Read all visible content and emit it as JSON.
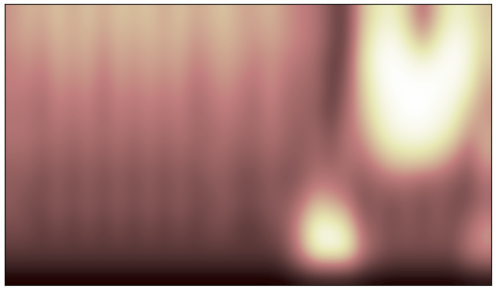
{
  "chart_data": {
    "type": "heatmap",
    "tick_labels": false,
    "color": "pink",
    "cells": [
      [
        0.45,
        0.55,
        0.5,
        0.6,
        0.5,
        0.6,
        0.5,
        0.6,
        0.55,
        0.6,
        0.5,
        0.6,
        0.5,
        0.55,
        0.6,
        0.5,
        0.5,
        0.55,
        0.45,
        0.4,
        0.35,
        0.2,
        0.15,
        0.55,
        0.75,
        0.8,
        0.6,
        0.3,
        0.6,
        0.8,
        0.75,
        0.6
      ],
      [
        0.45,
        0.5,
        0.45,
        0.55,
        0.5,
        0.55,
        0.45,
        0.55,
        0.5,
        0.55,
        0.5,
        0.55,
        0.45,
        0.5,
        0.55,
        0.5,
        0.45,
        0.5,
        0.45,
        0.4,
        0.35,
        0.2,
        0.15,
        0.6,
        0.85,
        0.9,
        0.75,
        0.5,
        0.75,
        0.9,
        0.85,
        0.65
      ],
      [
        0.4,
        0.45,
        0.4,
        0.5,
        0.45,
        0.5,
        0.4,
        0.5,
        0.45,
        0.5,
        0.45,
        0.5,
        0.4,
        0.45,
        0.5,
        0.45,
        0.4,
        0.45,
        0.4,
        0.35,
        0.3,
        0.15,
        0.2,
        0.65,
        0.9,
        0.95,
        0.9,
        0.85,
        0.9,
        0.95,
        0.85,
        0.6
      ],
      [
        0.4,
        0.4,
        0.35,
        0.45,
        0.4,
        0.45,
        0.35,
        0.45,
        0.4,
        0.45,
        0.4,
        0.45,
        0.35,
        0.4,
        0.45,
        0.4,
        0.35,
        0.45,
        0.35,
        0.3,
        0.3,
        0.15,
        0.25,
        0.6,
        0.85,
        0.95,
        0.95,
        0.95,
        0.95,
        0.9,
        0.8,
        0.5
      ],
      [
        0.35,
        0.35,
        0.3,
        0.4,
        0.35,
        0.4,
        0.3,
        0.4,
        0.35,
        0.4,
        0.35,
        0.4,
        0.3,
        0.35,
        0.4,
        0.35,
        0.3,
        0.4,
        0.3,
        0.3,
        0.25,
        0.15,
        0.3,
        0.55,
        0.8,
        0.9,
        0.95,
        0.95,
        0.9,
        0.85,
        0.6,
        0.45
      ],
      [
        0.35,
        0.35,
        0.3,
        0.35,
        0.3,
        0.35,
        0.3,
        0.35,
        0.3,
        0.35,
        0.3,
        0.35,
        0.3,
        0.3,
        0.35,
        0.3,
        0.3,
        0.35,
        0.3,
        0.25,
        0.3,
        0.2,
        0.35,
        0.45,
        0.7,
        0.85,
        0.9,
        0.9,
        0.85,
        0.7,
        0.45,
        0.5
      ],
      [
        0.3,
        0.3,
        0.25,
        0.3,
        0.25,
        0.3,
        0.25,
        0.3,
        0.25,
        0.3,
        0.25,
        0.3,
        0.25,
        0.3,
        0.3,
        0.25,
        0.25,
        0.3,
        0.25,
        0.25,
        0.3,
        0.25,
        0.35,
        0.35,
        0.5,
        0.65,
        0.7,
        0.7,
        0.6,
        0.45,
        0.3,
        0.5
      ],
      [
        0.25,
        0.25,
        0.2,
        0.25,
        0.2,
        0.25,
        0.2,
        0.25,
        0.2,
        0.25,
        0.2,
        0.25,
        0.2,
        0.25,
        0.25,
        0.2,
        0.2,
        0.25,
        0.2,
        0.25,
        0.35,
        0.35,
        0.3,
        0.25,
        0.3,
        0.35,
        0.35,
        0.3,
        0.3,
        0.25,
        0.2,
        0.35
      ],
      [
        0.25,
        0.2,
        0.2,
        0.25,
        0.2,
        0.25,
        0.2,
        0.25,
        0.2,
        0.25,
        0.2,
        0.25,
        0.2,
        0.2,
        0.25,
        0.2,
        0.2,
        0.25,
        0.25,
        0.35,
        0.55,
        0.5,
        0.4,
        0.2,
        0.25,
        0.2,
        0.25,
        0.2,
        0.25,
        0.2,
        0.2,
        0.3
      ],
      [
        0.2,
        0.2,
        0.15,
        0.2,
        0.15,
        0.2,
        0.15,
        0.2,
        0.15,
        0.2,
        0.15,
        0.2,
        0.15,
        0.2,
        0.2,
        0.15,
        0.15,
        0.2,
        0.25,
        0.5,
        0.85,
        0.85,
        0.7,
        0.3,
        0.25,
        0.2,
        0.25,
        0.2,
        0.25,
        0.2,
        0.3,
        0.45
      ],
      [
        0.15,
        0.15,
        0.15,
        0.15,
        0.15,
        0.15,
        0.15,
        0.15,
        0.15,
        0.15,
        0.15,
        0.15,
        0.15,
        0.15,
        0.15,
        0.15,
        0.15,
        0.15,
        0.2,
        0.45,
        0.85,
        0.9,
        0.85,
        0.4,
        0.25,
        0.2,
        0.2,
        0.2,
        0.2,
        0.2,
        0.35,
        0.45
      ],
      [
        0.08,
        0.08,
        0.08,
        0.08,
        0.08,
        0.08,
        0.08,
        0.08,
        0.08,
        0.08,
        0.08,
        0.08,
        0.08,
        0.08,
        0.08,
        0.08,
        0.08,
        0.08,
        0.08,
        0.08,
        0.08,
        0.08,
        0.08,
        0.08,
        0.08,
        0.08,
        0.08,
        0.08,
        0.08,
        0.08,
        0.08,
        0.08
      ]
    ]
  }
}
